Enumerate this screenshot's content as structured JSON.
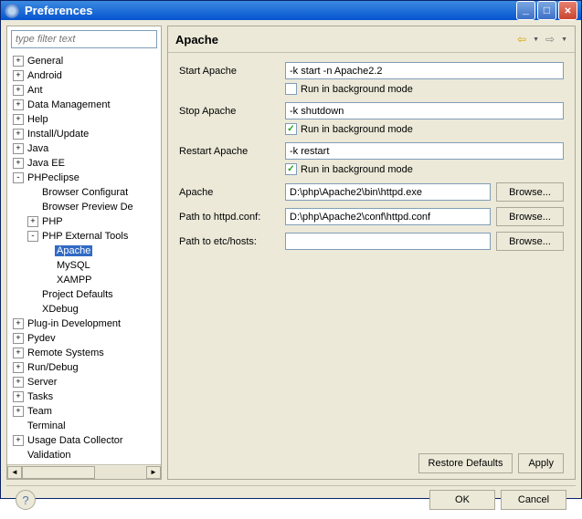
{
  "window": {
    "title": "Preferences"
  },
  "filter": {
    "placeholder": "type filter text"
  },
  "tree": [
    {
      "label": "General",
      "depth": 0,
      "exp": "+"
    },
    {
      "label": "Android",
      "depth": 0,
      "exp": "+"
    },
    {
      "label": "Ant",
      "depth": 0,
      "exp": "+"
    },
    {
      "label": "Data Management",
      "depth": 0,
      "exp": "+"
    },
    {
      "label": "Help",
      "depth": 0,
      "exp": "+"
    },
    {
      "label": "Install/Update",
      "depth": 0,
      "exp": "+"
    },
    {
      "label": "Java",
      "depth": 0,
      "exp": "+"
    },
    {
      "label": "Java EE",
      "depth": 0,
      "exp": "+"
    },
    {
      "label": "PHPeclipse",
      "depth": 0,
      "exp": "-"
    },
    {
      "label": "Browser Configurat",
      "depth": 1,
      "exp": ""
    },
    {
      "label": "Browser Preview De",
      "depth": 1,
      "exp": ""
    },
    {
      "label": "PHP",
      "depth": 1,
      "exp": "+"
    },
    {
      "label": "PHP External Tools",
      "depth": 1,
      "exp": "-"
    },
    {
      "label": "Apache",
      "depth": 2,
      "exp": "",
      "selected": true
    },
    {
      "label": "MySQL",
      "depth": 2,
      "exp": ""
    },
    {
      "label": "XAMPP",
      "depth": 2,
      "exp": ""
    },
    {
      "label": "Project Defaults",
      "depth": 1,
      "exp": ""
    },
    {
      "label": "XDebug",
      "depth": 1,
      "exp": ""
    },
    {
      "label": "Plug-in Development",
      "depth": 0,
      "exp": "+"
    },
    {
      "label": "Pydev",
      "depth": 0,
      "exp": "+"
    },
    {
      "label": "Remote Systems",
      "depth": 0,
      "exp": "+"
    },
    {
      "label": "Run/Debug",
      "depth": 0,
      "exp": "+"
    },
    {
      "label": "Server",
      "depth": 0,
      "exp": "+"
    },
    {
      "label": "Tasks",
      "depth": 0,
      "exp": "+"
    },
    {
      "label": "Team",
      "depth": 0,
      "exp": "+"
    },
    {
      "label": "Terminal",
      "depth": 0,
      "exp": ""
    },
    {
      "label": "Usage Data Collector",
      "depth": 0,
      "exp": "+"
    },
    {
      "label": "Validation",
      "depth": 0,
      "exp": ""
    }
  ],
  "page": {
    "title": "Apache",
    "startLabel": "Start Apache",
    "startValue": "-k start -n Apache2.2",
    "startBg": "Run in background mode",
    "startBgChecked": false,
    "stopLabel": "Stop Apache",
    "stopValue": "-k shutdown",
    "stopBg": "Run in background mode",
    "stopBgChecked": true,
    "restartLabel": "Restart Apache",
    "restartValue": "-k restart",
    "restartBg": "Run in background mode",
    "restartBgChecked": true,
    "apacheLabel": "Apache",
    "apacheValue": "D:\\php\\Apache2\\bin\\httpd.exe",
    "httpdLabel": "Path to httpd.conf:",
    "httpdValue": "D:\\php\\Apache2\\conf\\httpd.conf",
    "hostsLabel": "Path to etc/hosts:",
    "hostsValue": "",
    "browse": "Browse...",
    "restore": "Restore Defaults",
    "apply": "Apply"
  },
  "buttons": {
    "ok": "OK",
    "cancel": "Cancel"
  }
}
